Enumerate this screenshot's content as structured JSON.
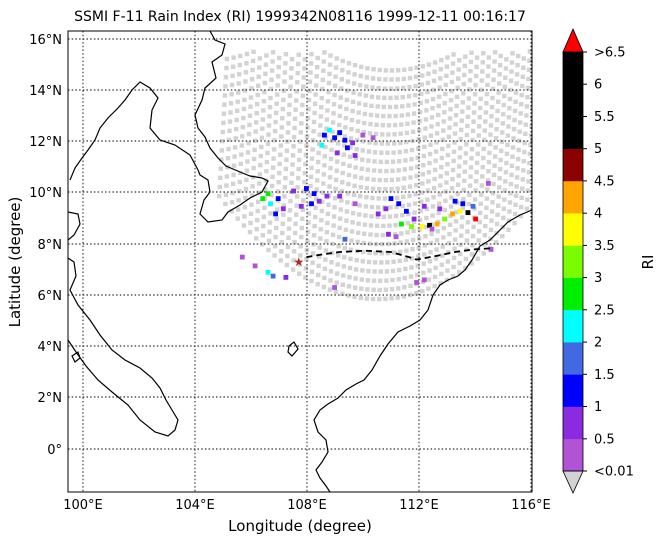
{
  "title": "SSMI F-11 Rain Index (RI) 1999342N08116 1999-12-11 00:16:17",
  "xlabel": "Longitude (degree)",
  "ylabel": "Latitude (degree)",
  "x_ticks": [
    "100°E",
    "104°E",
    "108°E",
    "112°E",
    "116°E"
  ],
  "y_ticks": [
    "16°N",
    "14°N",
    "12°N",
    "10°N",
    "8°N",
    "6°N",
    "4°N",
    "2°N",
    "0°"
  ],
  "map_extent": {
    "lon": [
      99.4,
      117.5
    ],
    "lat": [
      -1.75,
      16.4
    ]
  },
  "colorbar": {
    "label": "RI",
    "tick_labels": [
      ">6.5",
      "6",
      "5.5",
      "5",
      "4.5",
      "4",
      "3.5",
      "3",
      "2.5",
      "2",
      "1.5",
      "1",
      "0.5",
      "<0.01"
    ],
    "bin_colors": [
      "#b253d6",
      "#8a2be2",
      "#0000ff",
      "#4169e1",
      "#00ffff",
      "#00ee00",
      "#7cfc00",
      "#ffff00",
      "#ffa500",
      "#8b0000",
      "#000000",
      "#000000",
      "#000000"
    ],
    "under_color": "#d3d3d3",
    "over_color": "#ff0000"
  },
  "chart_data": {
    "type": "scatter",
    "title": "SSMI F-11 Rain Index (RI) 1999342N08116 1999-12-11 00:16:17",
    "xlabel": "Longitude (degree)",
    "ylabel": "Latitude (degree)",
    "xlim": [
      99.4,
      117.5
    ],
    "ylim": [
      -1.75,
      16.4
    ],
    "grid": true,
    "storm_marker": {
      "lon": 108.4,
      "lat": 7.3,
      "color": "#b22222"
    },
    "storm_track": [
      [
        108.7,
        7.5
      ],
      [
        109.3,
        7.6
      ],
      [
        110,
        7.7
      ],
      [
        111,
        7.75
      ],
      [
        112,
        7.7
      ],
      [
        112.7,
        7.5
      ],
      [
        113,
        7.4
      ],
      [
        113.8,
        7.55
      ],
      [
        114.5,
        7.7
      ],
      [
        115.2,
        7.8
      ],
      [
        116,
        7.85
      ]
    ],
    "rain_points": [
      {
        "lon": 109.4,
        "lat": 12.3,
        "ri": 1.0
      },
      {
        "lon": 109.6,
        "lat": 12.5,
        "ri": 2.2
      },
      {
        "lon": 109.8,
        "lat": 12.2,
        "ri": 1.3
      },
      {
        "lon": 110.0,
        "lat": 12.4,
        "ri": 1.2
      },
      {
        "lon": 110.2,
        "lat": 12.1,
        "ri": 1.4
      },
      {
        "lon": 110.3,
        "lat": 11.8,
        "ri": 1.3
      },
      {
        "lon": 110.5,
        "lat": 12.0,
        "ri": 0.8
      },
      {
        "lon": 109.9,
        "lat": 11.6,
        "ri": 0.6
      },
      {
        "lon": 110.6,
        "lat": 11.5,
        "ri": 0.9
      },
      {
        "lon": 110.9,
        "lat": 12.3,
        "ri": 0.3
      },
      {
        "lon": 111.3,
        "lat": 12.2,
        "ri": 0.3
      },
      {
        "lon": 109.3,
        "lat": 11.9,
        "ri": 2.3
      },
      {
        "lon": 107.2,
        "lat": 10.0,
        "ri": 2.7
      },
      {
        "lon": 107.0,
        "lat": 9.8,
        "ri": 2.8
      },
      {
        "lon": 107.3,
        "lat": 9.6,
        "ri": 2.3
      },
      {
        "lon": 107.6,
        "lat": 9.8,
        "ri": 1.2
      },
      {
        "lon": 107.8,
        "lat": 9.4,
        "ri": 0.7
      },
      {
        "lon": 107.5,
        "lat": 9.2,
        "ri": 1.3
      },
      {
        "lon": 108.2,
        "lat": 10.1,
        "ri": 0.6
      },
      {
        "lon": 108.7,
        "lat": 10.2,
        "ri": 1.2
      },
      {
        "lon": 109.0,
        "lat": 10.0,
        "ri": 1.4
      },
      {
        "lon": 109.2,
        "lat": 9.7,
        "ri": 0.9
      },
      {
        "lon": 108.9,
        "lat": 9.6,
        "ri": 1.3
      },
      {
        "lon": 109.5,
        "lat": 9.9,
        "ri": 0.7
      },
      {
        "lon": 110.0,
        "lat": 9.9,
        "ri": 0.5
      },
      {
        "lon": 108.5,
        "lat": 9.5,
        "ri": 0.8
      },
      {
        "lon": 110.6,
        "lat": 9.6,
        "ri": 0.3
      },
      {
        "lon": 112.0,
        "lat": 9.8,
        "ri": 1.3
      },
      {
        "lon": 112.3,
        "lat": 9.6,
        "ri": 1.2
      },
      {
        "lon": 111.8,
        "lat": 9.4,
        "ri": 0.8
      },
      {
        "lon": 112.6,
        "lat": 9.3,
        "ri": 1.4
      },
      {
        "lon": 111.5,
        "lat": 9.2,
        "ri": 0.6
      },
      {
        "lon": 112.9,
        "lat": 9.0,
        "ri": 0.7
      },
      {
        "lon": 112.4,
        "lat": 8.8,
        "ri": 2.7
      },
      {
        "lon": 112.8,
        "lat": 8.7,
        "ri": 3.2
      },
      {
        "lon": 113.2,
        "lat": 8.7,
        "ri": 3.6
      },
      {
        "lon": 113.5,
        "lat": 8.75,
        "ri": 5.2
      },
      {
        "lon": 113.8,
        "lat": 8.8,
        "ri": 4.3
      },
      {
        "lon": 114.1,
        "lat": 9.0,
        "ri": 3.1
      },
      {
        "lon": 114.4,
        "lat": 9.2,
        "ri": 4.2
      },
      {
        "lon": 114.7,
        "lat": 9.3,
        "ri": 3.7
      },
      {
        "lon": 115.0,
        "lat": 9.25,
        "ri": 5.5
      },
      {
        "lon": 115.3,
        "lat": 9.0,
        "ri": 6.8
      },
      {
        "lon": 114.8,
        "lat": 9.6,
        "ri": 1.3
      },
      {
        "lon": 114.5,
        "lat": 9.7,
        "ri": 1.2
      },
      {
        "lon": 115.2,
        "lat": 9.5,
        "ri": 1.6
      },
      {
        "lon": 113.9,
        "lat": 9.4,
        "ri": 0.8
      },
      {
        "lon": 112.2,
        "lat": 8.3,
        "ri": 0.4
      },
      {
        "lon": 111.9,
        "lat": 8.4,
        "ri": 0.6
      },
      {
        "lon": 113.6,
        "lat": 8.6,
        "ri": 0.3
      },
      {
        "lon": 113.3,
        "lat": 9.5,
        "ri": 0.5
      },
      {
        "lon": 115.9,
        "lat": 7.8,
        "ri": 0.3
      },
      {
        "lon": 115.8,
        "lat": 10.4,
        "ri": 0.3
      },
      {
        "lon": 110.2,
        "lat": 8.2,
        "ri": 1.8
      },
      {
        "lon": 107.2,
        "lat": 6.9,
        "ri": 2.4
      },
      {
        "lon": 107.4,
        "lat": 6.75,
        "ri": 1.6
      },
      {
        "lon": 107.9,
        "lat": 6.7,
        "ri": 0.8
      },
      {
        "lon": 106.7,
        "lat": 7.15,
        "ri": 0.3
      },
      {
        "lon": 106.2,
        "lat": 7.5,
        "ri": 0.4
      },
      {
        "lon": 109.8,
        "lat": 6.3,
        "ri": 0.3
      },
      {
        "lon": 113.0,
        "lat": 6.5,
        "ri": 0.3
      },
      {
        "lon": 113.3,
        "lat": 6.6,
        "ri": 0.3
      }
    ]
  }
}
